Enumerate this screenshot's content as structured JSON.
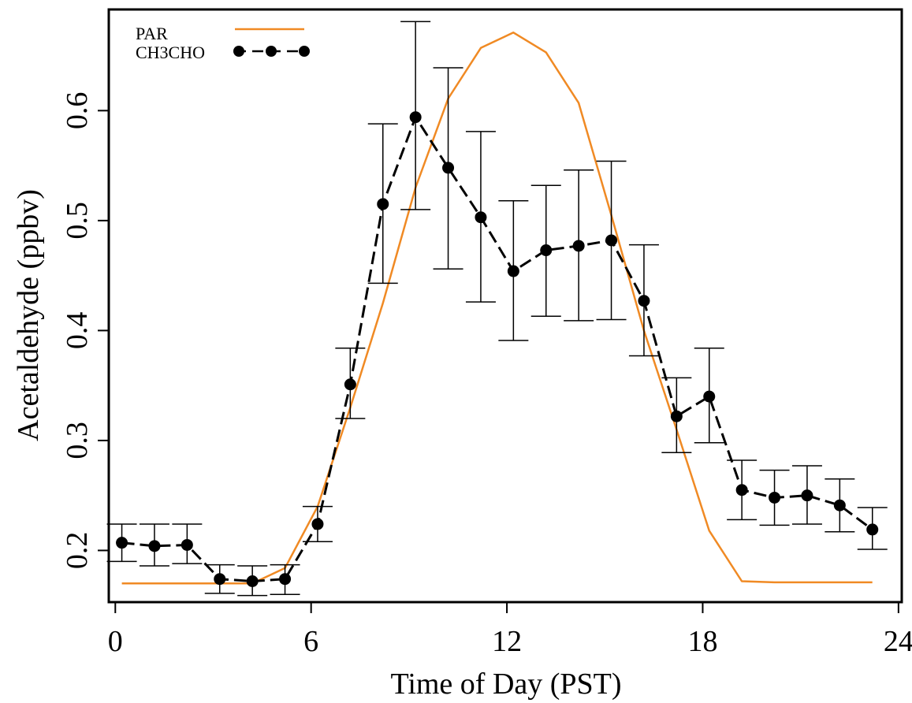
{
  "chart_data": {
    "type": "line",
    "title": "",
    "xlabel": "Time of Day (PST)",
    "ylabel": "Acetaldehyde (ppbv)",
    "xlim": [
      -0.2,
      24.1
    ],
    "ylim": [
      0.153,
      0.692
    ],
    "xticks": [
      0,
      6,
      12,
      18,
      24
    ],
    "xtick_labels": [
      "0",
      "6",
      "12",
      "18",
      "24"
    ],
    "yticks": [
      0.2,
      0.3,
      0.4,
      0.5,
      0.6
    ],
    "ytick_labels": [
      "0.2",
      "0.3",
      "0.4",
      "0.5",
      "0.6"
    ],
    "grid": false,
    "legend_position": "top-left",
    "series": [
      {
        "name": "PAR",
        "style": "line",
        "color": "#f08a24",
        "x": [
          0.2,
          1.2,
          2.2,
          3.2,
          4.2,
          5.2,
          6.2,
          7.2,
          8.2,
          9.2,
          10.2,
          11.2,
          12.2,
          13.2,
          14.2,
          15.2,
          16.2,
          17.2,
          18.2,
          19.2,
          20.2,
          21.2,
          22.2,
          23.2
        ],
        "values": [
          0.17,
          0.17,
          0.17,
          0.17,
          0.17,
          0.184,
          0.24,
          0.33,
          0.425,
          0.53,
          0.611,
          0.657,
          0.671,
          0.653,
          0.607,
          0.505,
          0.4,
          0.31,
          0.218,
          0.172,
          0.171,
          0.171,
          0.171,
          0.171
        ]
      },
      {
        "name": "CH3CHO",
        "style": "dashed-line-with-points",
        "color": "#000000",
        "x": [
          0.2,
          1.2,
          2.2,
          3.2,
          4.2,
          5.2,
          6.2,
          7.2,
          8.2,
          9.2,
          10.2,
          11.2,
          12.2,
          13.2,
          14.2,
          15.2,
          16.2,
          17.2,
          18.2,
          19.2,
          20.2,
          21.2,
          22.2,
          23.2
        ],
        "values": [
          0.207,
          0.204,
          0.205,
          0.174,
          0.172,
          0.174,
          0.224,
          0.351,
          0.515,
          0.594,
          0.548,
          0.503,
          0.454,
          0.473,
          0.477,
          0.482,
          0.427,
          0.322,
          0.34,
          0.255,
          0.248,
          0.25,
          0.241,
          0.219
        ],
        "error_lower": [
          0.19,
          0.186,
          0.188,
          0.161,
          0.159,
          0.16,
          0.208,
          0.32,
          0.443,
          0.51,
          0.456,
          0.426,
          0.391,
          0.413,
          0.409,
          0.41,
          0.377,
          0.289,
          0.298,
          0.228,
          0.223,
          0.224,
          0.217,
          0.201
        ],
        "error_upper": [
          0.224,
          0.224,
          0.224,
          0.187,
          0.186,
          0.187,
          0.24,
          0.384,
          0.588,
          0.681,
          0.639,
          0.581,
          0.518,
          0.532,
          0.546,
          0.554,
          0.478,
          0.357,
          0.384,
          0.282,
          0.273,
          0.277,
          0.265,
          0.239
        ]
      }
    ],
    "colors": {
      "par": "#f08a24",
      "ch3cho": "#000000",
      "frame": "#000000"
    }
  }
}
